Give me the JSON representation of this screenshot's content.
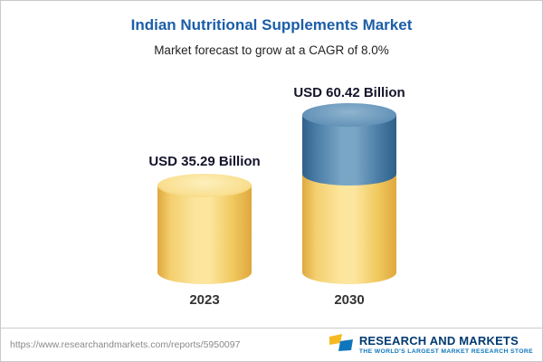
{
  "chart_data": {
    "type": "bar",
    "subtype": "3d-cylinder",
    "title": "Indian Nutritional Supplements Market",
    "subtitle": "Market forecast to grow at a CAGR of 8.0%",
    "categories": [
      "2023",
      "2030"
    ],
    "values": [
      35.29,
      60.42
    ],
    "value_labels": [
      "USD 35.29 Billion",
      "USD 60.42 Billion"
    ],
    "unit": "USD Billion",
    "cagr_pct": 8.0,
    "xlabel": "",
    "ylabel": "",
    "ylim": [
      0,
      65
    ],
    "grid": "off",
    "legend": "none",
    "colors": {
      "bar_base": "#F6D779",
      "bar_growth_segment": "#4E7FA8",
      "title_text": "#1B5EA8",
      "label_text": "#14142B"
    },
    "notes": "2030 bar is stacked: yellow base equals 2023 value, blue top segment is growth to 60.42"
  },
  "footer": {
    "url": "https://www.researchandmarkets.com/reports/5950097",
    "logo": {
      "line1": "RESEARCH AND MARKETS",
      "tagline": "THE WORLD'S LARGEST MARKET RESEARCH STORE",
      "colors": {
        "navy": "#003A70",
        "blue": "#0E76BC",
        "yellow": "#F5B921"
      }
    }
  }
}
